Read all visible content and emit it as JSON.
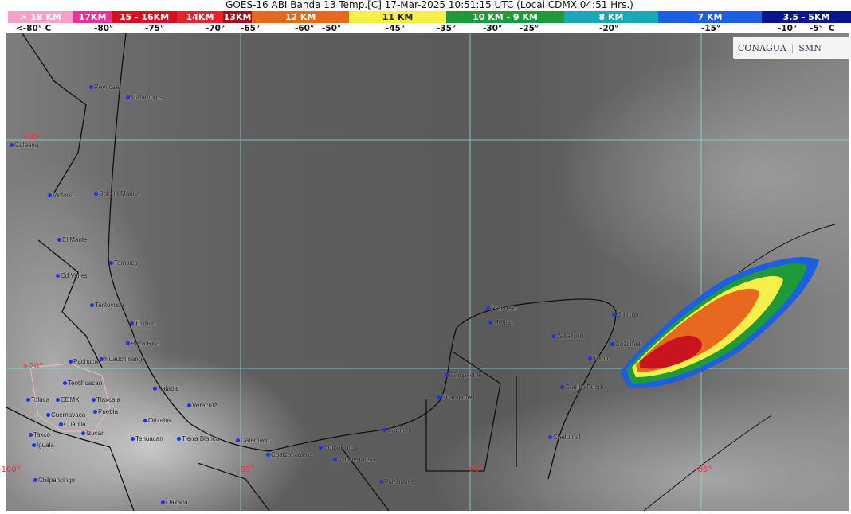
{
  "title": "GOES-16 ABI Banda 13 Temp.[C] 17-Mar-2025 10:51:15 UTC (Local CDMX  04:51 Hrs.)",
  "legend": [
    {
      "label": "> 18 KM",
      "color": "#f7a0c8"
    },
    {
      "label": "17KM",
      "color": "#ee2e9a"
    },
    {
      "label": "15 - 16KM",
      "color": "#d90f20"
    },
    {
      "label": "14KM",
      "color": "#e8232c"
    },
    {
      "label": "13KM",
      "color": "#a0101a"
    },
    {
      "label": "12 KM",
      "color": "#e8691e"
    },
    {
      "label": "11 KM",
      "color": "#f5ef4a"
    },
    {
      "label": "10 KM -  9 KM",
      "color": "#1f9a3a"
    },
    {
      "label": "8 KM",
      "color": "#19a8b8"
    },
    {
      "label": "7 KM",
      "color": "#1c5fe0"
    },
    {
      "label": "3.5 - 5KM",
      "color": "#0a1590"
    }
  ],
  "temps": [
    "<-80° C",
    "-80°",
    "-75°",
    "-70°",
    "-65°",
    "-60°",
    "-50°",
    "-45°",
    "-35°",
    "-30°",
    "-25°",
    "-20°",
    "-15°",
    "-10°",
    "-5°",
    "C"
  ],
  "grid_labels": [
    "+25°",
    "+20°",
    "-100°",
    "-95°",
    "-90°",
    "-85°"
  ],
  "logo": {
    "conagua": "CONAGUA",
    "smn": "SMN"
  },
  "cities": [
    "Reynosa",
    "Matamoros",
    "Galeana",
    "Victoria",
    "Soto la Marina",
    "El Mante",
    "Tampico",
    "Cd Valles",
    "Tantoyuca",
    "Tuxpan",
    "Poza Rica",
    "Pachuca",
    "Huauchinango",
    "Teotihuacan",
    "Toluca",
    "CDMX",
    "Tlaxcala",
    "Puebla",
    "Cuernavaca",
    "Cuautla",
    "Izucar",
    "Taxco",
    "Iguala",
    "Chilpancingo",
    "Oaxaca",
    "Xalapa",
    "Orizaba",
    "Tehuacan",
    "Veracruz",
    "Tierra Blanca",
    "Catemaco",
    "Coatzacoalcos",
    "Comalcalco",
    "Villahermosa",
    "Palenque",
    "Carmen",
    "Champoton",
    "Campeche",
    "Progreso",
    "Merida",
    "Valladolid",
    "Cancun",
    "Cozumel",
    "Tulum",
    "Carrillo Puerto",
    "Chetumal"
  ]
}
